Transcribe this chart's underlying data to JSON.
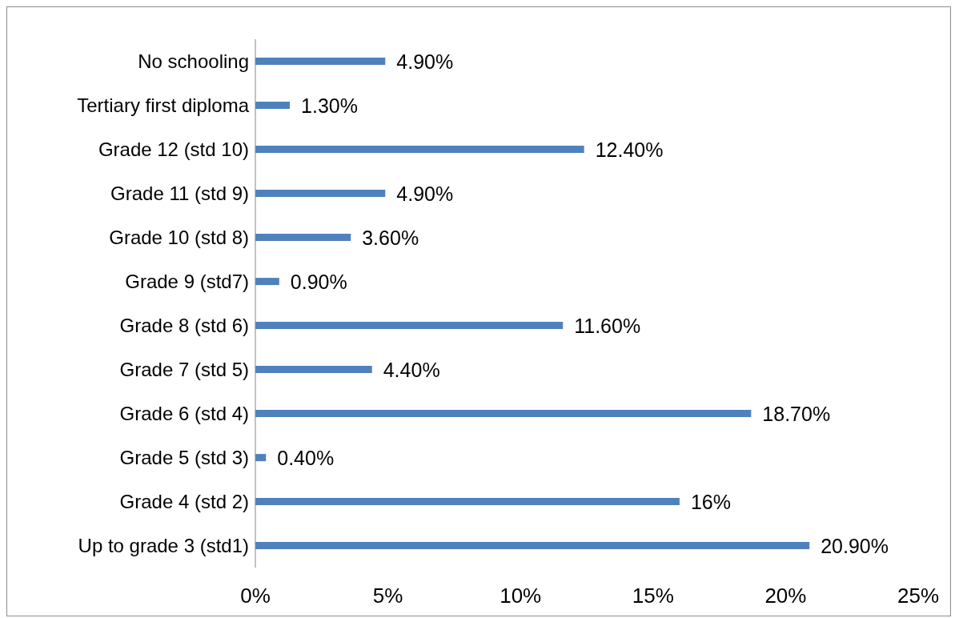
{
  "chart_data": {
    "type": "bar",
    "orientation": "horizontal",
    "categories": [
      "No schooling",
      "Tertiary first diploma",
      "Grade 12 (std 10)",
      "Grade 11 (std 9)",
      "Grade 10 (std 8)",
      "Grade 9 (std7)",
      "Grade 8 (std 6)",
      "Grade 7 (std 5)",
      "Grade 6 (std 4)",
      "Grade 5 (std 3)",
      "Grade 4 (std 2)",
      "Up to grade 3 (std1)"
    ],
    "values": [
      4.9,
      1.3,
      12.4,
      4.9,
      3.6,
      0.9,
      11.6,
      4.4,
      18.7,
      0.4,
      16,
      20.9
    ],
    "value_labels": [
      "4.90%",
      "1.30%",
      "12.40%",
      "4.90%",
      "3.60%",
      "0.90%",
      "11.60%",
      "4.40%",
      "18.70%",
      "0.40%",
      "16%",
      "20.90%"
    ],
    "color": "#4f81bd",
    "xlim": [
      0,
      25
    ],
    "xticks": [
      {
        "value": 0,
        "label": "0%"
      },
      {
        "value": 5,
        "label": "5%"
      },
      {
        "value": 10,
        "label": "10%"
      },
      {
        "value": 15,
        "label": "15%"
      },
      {
        "value": 20,
        "label": "20%"
      },
      {
        "value": 25,
        "label": "25%"
      }
    ],
    "grid": false,
    "legend": false
  }
}
